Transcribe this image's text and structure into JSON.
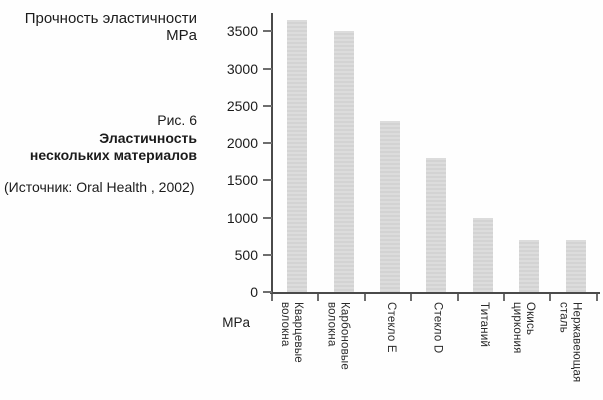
{
  "header": {
    "title_line1": "Прочность эластичности",
    "title_line2": "MPa"
  },
  "caption": {
    "figure_label": "Рис. 6",
    "caption_line1": "Эластичность",
    "caption_line2": "нескольких материалов",
    "source": "(Источник: Oral Health , 2002)"
  },
  "chart_data": {
    "type": "bar",
    "title": "Прочность эластичности MPa",
    "categories": [
      "Кварцевые волокна",
      "Карбоновые волокна",
      "Стекло E",
      "Стекло D",
      "Титаний",
      "Окись циркония",
      "Нержавеющая сталь"
    ],
    "categories_display": [
      "Кварцевые\nволокна",
      "Карбоновые\nволокна",
      "Стекло E",
      "Стекло D",
      "Титаний",
      "Окись\nциркония",
      "Нержавеющая\nсталь"
    ],
    "values": [
      3650,
      3500,
      2300,
      1800,
      1000,
      700,
      700
    ],
    "xlabel": "MPa",
    "ylabel": "",
    "yticks": [
      0,
      500,
      1000,
      1500,
      2000,
      2500,
      3000,
      3500
    ],
    "ylim": [
      0,
      3700
    ],
    "grid": false,
    "legend": "none",
    "bar_color": "#d8d8d8",
    "axis_color": "#4a4a4a",
    "tick_color": "#6e6e6e"
  }
}
